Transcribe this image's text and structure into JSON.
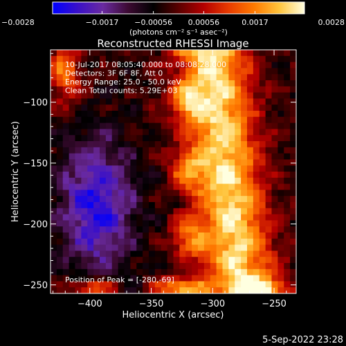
{
  "chart_data": {
    "type": "heatmap",
    "title": "Reconstructed RHESSI Image",
    "xlabel": "Heliocentric X (arcsec)",
    "ylabel": "Heliocentric Y (arcsec)",
    "xlim": [
      -432,
      -232
    ],
    "ylim": [
      -257,
      -57
    ],
    "x_ticks": [
      -400,
      -350,
      -300,
      -250
    ],
    "x_tick_labels": [
      "−400",
      "−350",
      "−300",
      "−250"
    ],
    "y_ticks": [
      -100,
      -150,
      -200,
      -250
    ],
    "y_tick_labels": [
      "−100",
      "−150",
      "−200",
      "−250"
    ],
    "colorbar": {
      "range": [
        -0.0028,
        0.0028
      ],
      "ticks": [
        -0.0028,
        -0.0017,
        -0.00056,
        0.00056,
        0.0017,
        0.0028
      ],
      "tick_labels": [
        "−0.0028",
        "−0.0017",
        "−0.00056",
        "0.00056",
        "0.0017",
        "0.0028"
      ],
      "units": "(photons cm⁻² s⁻¹ asec⁻²)"
    },
    "annotations": [
      "10-Jul-2017 08:05:40.000 to 08:08:28.000",
      "Detectors: 3F 6F 8F, Att 0",
      "Energy Range: 25.0 - 50.0 keV",
      "Clean    Total counts: 5.29E+03"
    ],
    "peak_label": "Position of Peak = [-280,-69]",
    "peak": {
      "x": -280,
      "y": -69
    },
    "grid": false
  },
  "footer_date": "5-Sep-2022 23:28",
  "colors": {
    "background": "#000000",
    "colormap": [
      "#0000ff",
      "#3a10c8",
      "#6a2aa0",
      "#3c0a32",
      "#000000",
      "#5a0000",
      "#b40000",
      "#e83c00",
      "#ff7a00",
      "#ffc43c",
      "#ffffe0"
    ]
  }
}
